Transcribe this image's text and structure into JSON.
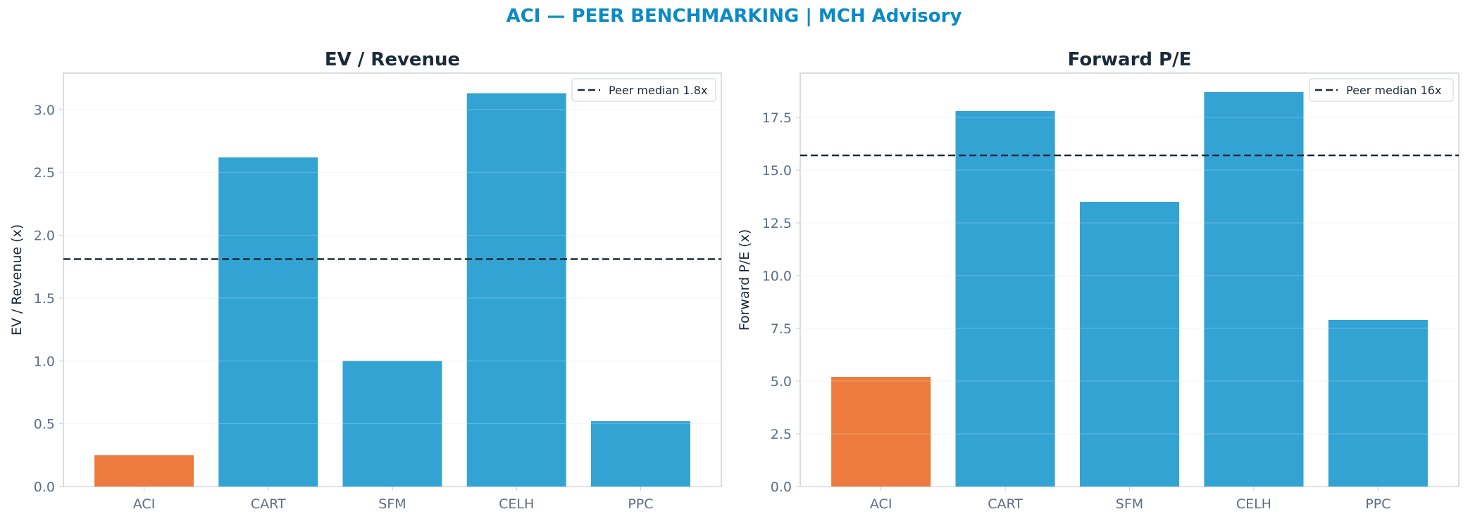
{
  "suptitle": "ACI — PEER BENCHMARKING | MCH Advisory",
  "colors": {
    "highlight": "#ec7b3d",
    "peer": "#33a3d4",
    "median_line": "#1b2a3a",
    "title": "#0a8ac6"
  },
  "chart_data": [
    {
      "type": "bar",
      "title": "EV / Revenue",
      "xlabel": "",
      "ylabel": "EV / Revenue (x)",
      "categories": [
        "ACI",
        "CART",
        "SFM",
        "CELH",
        "PPC"
      ],
      "values": [
        0.25,
        2.62,
        1.0,
        3.13,
        0.52
      ],
      "highlight_index": 0,
      "ylim": [
        0,
        3.29
      ],
      "yticks": [
        "0.0",
        "0.5",
        "1.0",
        "1.5",
        "2.0",
        "2.5",
        "3.0"
      ],
      "ytick_values": [
        0,
        0.5,
        1.0,
        1.5,
        2.0,
        2.5,
        3.0
      ],
      "reference_line": {
        "value": 1.81,
        "label": "Peer median 1.8x"
      },
      "legend": "upper-right",
      "grid": "y"
    },
    {
      "type": "bar",
      "title": "Forward P/E",
      "xlabel": "",
      "ylabel": "Forward P/E (x)",
      "categories": [
        "ACI",
        "CART",
        "SFM",
        "CELH",
        "PPC"
      ],
      "values": [
        5.2,
        17.8,
        13.5,
        18.7,
        7.9
      ],
      "highlight_index": 0,
      "ylim": [
        0,
        19.6
      ],
      "yticks": [
        "0.0",
        "2.5",
        "5.0",
        "7.5",
        "10.0",
        "12.5",
        "15.0",
        "17.5"
      ],
      "ytick_values": [
        0,
        2.5,
        5.0,
        7.5,
        10.0,
        12.5,
        15.0,
        17.5
      ],
      "reference_line": {
        "value": 15.7,
        "label": "Peer median 16x"
      },
      "legend": "upper-right",
      "grid": "y"
    }
  ]
}
